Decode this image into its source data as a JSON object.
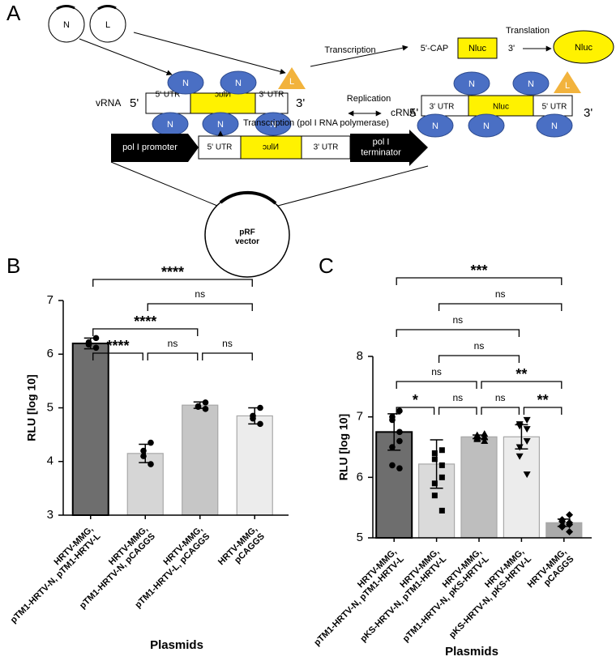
{
  "diagram": {
    "panel_label": "A",
    "plasmids": [
      "N",
      "L"
    ],
    "vrna": {
      "label": "vRNA",
      "end5": "5'",
      "end3": "3'",
      "segments": [
        "5' UTR",
        "Nluc",
        "3' UTR"
      ],
      "proteins": [
        "N",
        "N",
        "N",
        "N",
        "N"
      ],
      "polymerase": "L"
    },
    "replication": "Replication",
    "crna": {
      "label": "cRNA",
      "end5": "5'",
      "end3": "3'",
      "segments": [
        "3' UTR",
        "Nluc",
        "5' UTR"
      ],
      "proteins": [
        "N",
        "N",
        "N",
        "N",
        "N"
      ],
      "polymerase": "L"
    },
    "transcription": "Transcription",
    "mrna": {
      "cap": "5'-CAP",
      "orf": "Nluc",
      "end3": "3'"
    },
    "translation": "Translation",
    "protein": "Nluc",
    "pol1_transcription": "Transcription (pol I RNA polymerase)",
    "construct": {
      "promoter": "pol I promoter",
      "segments": [
        "5' UTR",
        "Nluc",
        "3' UTR"
      ],
      "terminator": "pol I\nterminator"
    },
    "vector": "pRF\nvector"
  },
  "chart_data": [
    {
      "type": "bar",
      "panel_label": "B",
      "ylabel": "RLU [log 10]",
      "xlabel": "Plasmids",
      "categories": [
        "HRTV-MMG,\npTM1-HRTV-N, pTM1-HRTV-L",
        "HRTV-MMG,\npTM1-HRTV-N, pCAGGS",
        "HRTV-MMG,\npTM1-HRTV-L, pCAGGS",
        "HRTV-MMG,\npCAGGS"
      ],
      "values": [
        6.2,
        4.15,
        5.05,
        4.85
      ],
      "errors": [
        0.1,
        0.17,
        0.06,
        0.15
      ],
      "points": [
        [
          6.3,
          6.22,
          6.18,
          6.12
        ],
        [
          4.35,
          4.2,
          4.1,
          3.95
        ],
        [
          5.1,
          5.03,
          5.02,
          4.98
        ],
        [
          5.0,
          4.85,
          4.8,
          4.7
        ]
      ],
      "markers": [
        "circle",
        "circle",
        "circle",
        "circle"
      ],
      "colors": [
        "#6e6e6e",
        "#d6d6d6",
        "#c6c6c6",
        "#ececec"
      ],
      "ylim": [
        3,
        7
      ],
      "yticks": [
        3,
        4,
        5,
        6,
        7
      ],
      "brackets": [
        {
          "between": [
            0,
            3
          ],
          "label": "****"
        },
        {
          "between": [
            1,
            3
          ],
          "label": "ns"
        },
        {
          "between": [
            0,
            2
          ],
          "label": "****"
        },
        {
          "between": [
            0,
            1
          ],
          "label": "****"
        },
        {
          "between": [
            1,
            2
          ],
          "label": "ns"
        },
        {
          "between": [
            2,
            3
          ],
          "label": "ns"
        }
      ]
    },
    {
      "type": "bar",
      "panel_label": "C",
      "ylabel": "RLU [log 10]",
      "xlabel": "Plasmids",
      "categories": [
        "HRTV-MMG,\npTM1-HRTV-N, pTM1-HRTV-L",
        "HRTV-MMG,\npKS-HRTV-N, pTM1-HRTV-L",
        "HRTV-MMG,\npTM1-HRTV-N, pKS-HRTV-L",
        "HRTV-MMG,\npKS-HRTV-N, pKS-HRTV-L",
        "HRTV-MMG,\npCAGGS"
      ],
      "values": [
        6.75,
        6.22,
        6.67,
        6.67,
        5.25
      ],
      "errors": [
        0.3,
        0.4,
        0.03,
        0.2,
        0.06
      ],
      "points": [
        [
          7.1,
          7.0,
          6.95,
          6.75,
          6.6,
          6.5,
          6.2,
          6.15
        ],
        [
          6.45,
          6.4,
          6.3,
          6.2,
          6.0,
          5.9,
          5.7,
          5.45
        ],
        [
          6.72,
          6.7,
          6.68,
          6.67,
          6.66,
          6.65,
          6.63,
          6.6
        ],
        [
          6.95,
          6.88,
          6.85,
          6.8,
          6.6,
          6.5,
          6.35,
          6.05
        ],
        [
          5.38,
          5.3,
          5.27,
          5.25,
          5.22,
          5.2,
          5.18,
          5.1
        ]
      ],
      "markers": [
        "circle",
        "square",
        "triangle",
        "triangle-down",
        "diamond"
      ],
      "colors": [
        "#6e6e6e",
        "#dadada",
        "#bebebe",
        "#ececec",
        "#aaaaaa"
      ],
      "ylim": [
        5,
        8
      ],
      "yticks": [
        5,
        6,
        7,
        8
      ],
      "brackets": [
        {
          "between": [
            0,
            4
          ],
          "label": "***"
        },
        {
          "between": [
            1,
            4
          ],
          "label": "ns"
        },
        {
          "between": [
            0,
            3
          ],
          "label": "ns"
        },
        {
          "between": [
            1,
            3
          ],
          "label": "ns"
        },
        {
          "between": [
            0,
            2
          ],
          "label": "ns"
        },
        {
          "between": [
            2,
            4
          ],
          "label": "**"
        },
        {
          "between": [
            0,
            1
          ],
          "label": "*"
        },
        {
          "between": [
            1,
            2
          ],
          "label": "ns"
        },
        {
          "between": [
            2,
            3
          ],
          "label": "ns"
        },
        {
          "between": [
            3,
            4
          ],
          "label": "**"
        }
      ]
    }
  ]
}
